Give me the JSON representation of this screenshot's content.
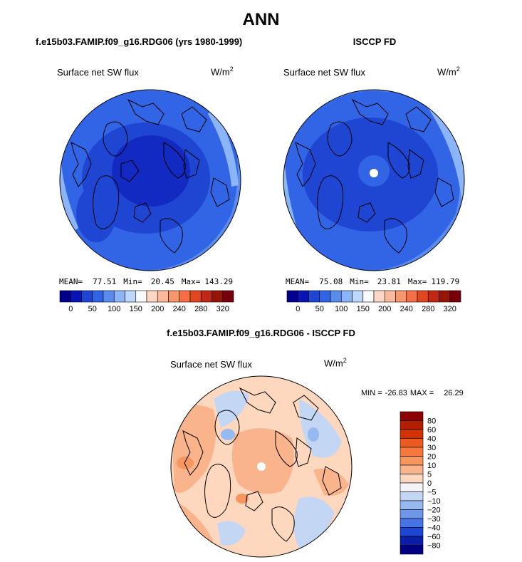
{
  "page": {
    "title": "ANN",
    "diff_title": "f.e15b03.FAMIP.f09_g16.RDG06 - ISCCP FD"
  },
  "chart_data": [
    {
      "type": "heatmap",
      "projection": "north-polar-stereographic",
      "case_title": "f.e15b03.FAMIP.f09_g16.RDG06 (yrs 1980-1999)",
      "variable": "Surface net SW flux",
      "units_base": "W/m",
      "units_exp": "2",
      "stats": {
        "mean_label": "MEAN=",
        "mean": "77.51",
        "min_label": "Min=",
        "min": "20.45",
        "max_label": "Max=",
        "max": "143.29"
      },
      "colorbar": {
        "orientation": "horizontal",
        "levels": [
          0,
          25,
          50,
          75,
          100,
          125,
          150,
          175,
          200,
          220,
          240,
          260,
          280,
          300,
          320
        ],
        "tick_labels": [
          "0",
          "50",
          "100",
          "150",
          "200",
          "240",
          "280",
          "320"
        ],
        "colors": [
          "#00008c",
          "#0a14b4",
          "#1e46d2",
          "#3264e6",
          "#5a8cf0",
          "#8cb4f8",
          "#bed7fb",
          "#fafafa",
          "#fdd7c3",
          "#fbb99b",
          "#f8966e",
          "#f56e46",
          "#e1461e",
          "#be2814",
          "#96140a",
          "#78000a"
        ]
      }
    },
    {
      "type": "heatmap",
      "projection": "north-polar-stereographic",
      "case_title": "ISCCP FD",
      "variable": "Surface net SW flux",
      "units_base": "W/m",
      "units_exp": "2",
      "stats": {
        "mean_label": "MEAN=",
        "mean": "75.08",
        "min_label": "Min=",
        "min": "23.81",
        "max_label": "Max=",
        "max": "119.79"
      },
      "colorbar": {
        "orientation": "horizontal",
        "levels": [
          0,
          25,
          50,
          75,
          100,
          125,
          150,
          175,
          200,
          220,
          240,
          260,
          280,
          300,
          320
        ],
        "tick_labels": [
          "0",
          "50",
          "100",
          "150",
          "200",
          "240",
          "280",
          "320"
        ],
        "colors": [
          "#00008c",
          "#0a14b4",
          "#1e46d2",
          "#3264e6",
          "#5a8cf0",
          "#8cb4f8",
          "#bed7fb",
          "#fafafa",
          "#fdd7c3",
          "#fbb99b",
          "#f8966e",
          "#f56e46",
          "#e1461e",
          "#be2814",
          "#96140a",
          "#78000a"
        ]
      }
    },
    {
      "type": "heatmap",
      "projection": "north-polar-stereographic",
      "case_title": "f.e15b03.FAMIP.f09_g16.RDG06 - ISCCP FD",
      "variable": "Surface net SW flux",
      "units_base": "W/m",
      "units_exp": "2",
      "stats": {
        "min_label": "MIN =",
        "min": "-26.83",
        "max_label": "MAX =",
        "max": "26.29"
      },
      "colorbar": {
        "orientation": "vertical",
        "levels": [
          80,
          60,
          40,
          30,
          20,
          10,
          5,
          0,
          -5,
          -10,
          -20,
          -30,
          -40,
          -60,
          -80
        ],
        "tick_labels": [
          "80",
          "60",
          "40",
          "30",
          "20",
          "10",
          "5",
          "0",
          "−5",
          "−10",
          "−20",
          "−30",
          "−40",
          "−60",
          "−80"
        ],
        "colors": [
          "#8c0000",
          "#b41e00",
          "#d23200",
          "#eb5a1e",
          "#f5783c",
          "#f8965f",
          "#fab48c",
          "#fdd7be",
          "#f3f3f8",
          "#c3d7f5",
          "#96b9f0",
          "#6e96eb",
          "#4673e6",
          "#1e46d2",
          "#0a1eaa",
          "#000082"
        ]
      }
    }
  ]
}
